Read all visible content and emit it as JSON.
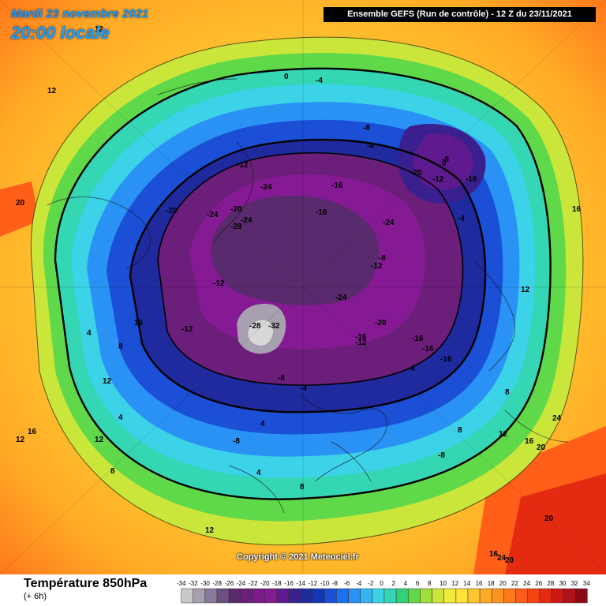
{
  "header": {
    "date_label": "Mardi 23 novembre 2021",
    "time_label": "20:00 locale",
    "run_label": "Ensemble GEFS  (Run de contrôle)  -  12 Z du 23/11/2021"
  },
  "copyright": "Copyright © 2021 Meteociel.fr",
  "legend": {
    "title": "Température 850hPa",
    "subtitle": "(+ 6h)",
    "ticks": [
      "-34",
      "-32",
      "-30",
      "-28",
      "-26",
      "-24",
      "-22",
      "-20",
      "-18",
      "-16",
      "-14",
      "-12",
      "-10",
      "-8",
      "-6",
      "-4",
      "-2",
      "0",
      "2",
      "4",
      "6",
      "8",
      "10",
      "12",
      "14",
      "16",
      "18",
      "20",
      "22",
      "24",
      "26",
      "28",
      "30",
      "32",
      "34"
    ],
    "colors": [
      "#c9c9c9",
      "#a8a0b0",
      "#8a7a9a",
      "#6b4f7e",
      "#5a2a6e",
      "#6c1f7a",
      "#7b1a88",
      "#861a95",
      "#5f1a8f",
      "#3a1f8f",
      "#1e2a9e",
      "#1437b8",
      "#1a4fd6",
      "#1b6ff0",
      "#2a92f5",
      "#34b5f2",
      "#3cd2e8",
      "#35d6b4",
      "#32d07a",
      "#5fd84a",
      "#9fe03a",
      "#cbe63a",
      "#f0ec3a",
      "#ffe23a",
      "#ffc52f",
      "#ffab26",
      "#ff9320",
      "#ff7a1c",
      "#ff5f18",
      "#f54414",
      "#e52a12",
      "#cc1a12",
      "#b0121a",
      "#8a0a14"
    ]
  },
  "map_labels": [
    "-4",
    "0",
    "-8",
    "-4",
    "12",
    "12",
    "-12",
    "-16",
    "-8",
    "-20",
    "-12",
    "-16",
    "-20",
    "-24",
    "-20",
    "-24",
    "-28",
    "-24",
    "-12",
    "-16",
    "-8",
    "-12",
    "-24",
    "-28",
    "-32",
    "-16",
    "-16",
    "-12",
    "-20",
    "-24",
    "-8",
    "-4",
    "4",
    "8",
    "12",
    "16",
    "20",
    "4",
    "8",
    "12",
    "16",
    "4",
    "8",
    "12",
    "16",
    "20",
    "24",
    "20",
    "16",
    "12",
    "8",
    "4",
    "0",
    "-4",
    "-8",
    "12",
    "16",
    "20",
    "24",
    "-12",
    "-16",
    "-16",
    "-8",
    "4",
    "8",
    "12"
  ]
}
